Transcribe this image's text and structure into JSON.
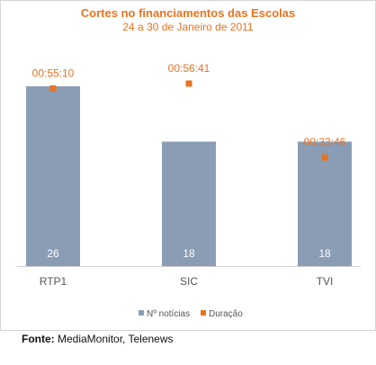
{
  "chart_data": {
    "type": "bar",
    "title": "Cortes no financiamentos das Escolas",
    "subtitle": "24 a 30 de Janeiro de 2011",
    "categories": [
      "RTP1",
      "SIC",
      "TVI"
    ],
    "series": [
      {
        "name": "Nº notícias",
        "type": "bar",
        "color": "#8a9db5",
        "values": [
          26,
          18,
          18
        ],
        "labels": [
          "26",
          "18",
          "18"
        ]
      },
      {
        "name": "Duração",
        "type": "scatter",
        "color": "#e8731f",
        "values_seconds": [
          3310,
          3401,
          2026
        ],
        "labels": [
          "00:55:10",
          "00:56:41",
          "00:33:46"
        ]
      }
    ],
    "legend_position": "bottom",
    "grid": false
  },
  "source": {
    "label": "Fonte:",
    "text": "MediaMonitor, Telenews"
  }
}
